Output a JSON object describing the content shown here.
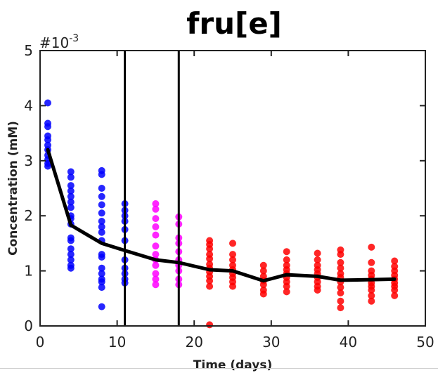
{
  "chart_data": {
    "type": "scatter",
    "title": "fru[e]",
    "xlabel": "Time (days)",
    "ylabel": "Concentration (mM)",
    "xlim": [
      0,
      50
    ],
    "ylim": [
      0,
      5
    ],
    "x_ticks": [
      "0",
      "10",
      "20",
      "30",
      "40",
      "50"
    ],
    "y_ticks": [
      "0",
      "1",
      "2",
      "3",
      "4",
      "5"
    ],
    "y_multiplier_base": "#10",
    "y_multiplier_exp": "-3",
    "vertical_lines_x": [
      11,
      18
    ],
    "mean_line": {
      "color": "#000000",
      "x": [
        1,
        4,
        8,
        11,
        15,
        18,
        22,
        25,
        29,
        32,
        36,
        39,
        43,
        46
      ],
      "y": [
        3.2,
        1.83,
        1.5,
        1.37,
        1.2,
        1.15,
        1.02,
        1.0,
        0.82,
        0.93,
        0.9,
        0.83,
        0.84,
        0.85
      ]
    },
    "series": [
      {
        "color": "#0000ff",
        "points": [
          [
            1,
            4.05
          ],
          [
            1,
            3.68
          ],
          [
            1,
            3.62
          ],
          [
            1,
            3.45
          ],
          [
            1,
            3.38
          ],
          [
            1,
            3.28
          ],
          [
            1,
            3.2
          ],
          [
            1,
            3.1
          ],
          [
            1,
            3.02
          ],
          [
            1,
            2.95
          ],
          [
            1,
            2.9
          ],
          [
            4,
            2.8
          ],
          [
            4,
            2.7
          ],
          [
            4,
            2.55
          ],
          [
            4,
            2.45
          ],
          [
            4,
            2.35
          ],
          [
            4,
            2.25
          ],
          [
            4,
            2.15
          ],
          [
            4,
            2.0
          ],
          [
            4,
            1.95
          ],
          [
            4,
            1.85
          ],
          [
            4,
            1.6
          ],
          [
            4,
            1.55
          ],
          [
            4,
            1.4
          ],
          [
            4,
            1.3
          ],
          [
            4,
            1.2
          ],
          [
            4,
            1.1
          ],
          [
            4,
            1.05
          ],
          [
            8,
            2.82
          ],
          [
            8,
            2.75
          ],
          [
            8,
            2.5
          ],
          [
            8,
            2.35
          ],
          [
            8,
            2.2
          ],
          [
            8,
            2.05
          ],
          [
            8,
            1.9
          ],
          [
            8,
            1.8
          ],
          [
            8,
            1.7
          ],
          [
            8,
            1.55
          ],
          [
            8,
            1.3
          ],
          [
            8,
            1.25
          ],
          [
            8,
            1.05
          ],
          [
            8,
            0.95
          ],
          [
            8,
            0.85
          ],
          [
            8,
            0.8
          ],
          [
            8,
            0.7
          ],
          [
            8,
            0.35
          ],
          [
            11,
            2.22
          ],
          [
            11,
            2.1
          ],
          [
            11,
            2.0
          ],
          [
            11,
            1.9
          ],
          [
            11,
            1.75
          ],
          [
            11,
            1.55
          ],
          [
            11,
            1.2
          ],
          [
            11,
            1.05
          ],
          [
            11,
            0.95
          ],
          [
            11,
            0.85
          ],
          [
            11,
            0.78
          ]
        ]
      },
      {
        "color": "#ff00ff",
        "points": [
          [
            15,
            2.22
          ],
          [
            15,
            2.12
          ],
          [
            15,
            1.95
          ],
          [
            15,
            1.8
          ],
          [
            15,
            1.65
          ],
          [
            15,
            1.45
          ],
          [
            15,
            1.3
          ],
          [
            15,
            1.2
          ],
          [
            15,
            1.1
          ],
          [
            15,
            0.95
          ],
          [
            15,
            0.85
          ],
          [
            15,
            0.75
          ],
          [
            18,
            1.98
          ],
          [
            18,
            1.85
          ],
          [
            18,
            1.6
          ],
          [
            18,
            1.5
          ],
          [
            18,
            1.35
          ],
          [
            18,
            1.2
          ],
          [
            18,
            1.1
          ],
          [
            18,
            1.0
          ],
          [
            18,
            0.85
          ],
          [
            18,
            0.75
          ]
        ]
      },
      {
        "color": "#ff0000",
        "points": [
          [
            22,
            1.55
          ],
          [
            22,
            1.48
          ],
          [
            22,
            1.4
          ],
          [
            22,
            1.3
          ],
          [
            22,
            1.22
          ],
          [
            22,
            1.12
          ],
          [
            22,
            1.05
          ],
          [
            22,
            0.98
          ],
          [
            22,
            0.9
          ],
          [
            22,
            0.82
          ],
          [
            22,
            0.72
          ],
          [
            22,
            0.02
          ],
          [
            25,
            1.5
          ],
          [
            25,
            1.3
          ],
          [
            25,
            1.2
          ],
          [
            25,
            1.1
          ],
          [
            25,
            1.02
          ],
          [
            25,
            0.95
          ],
          [
            25,
            0.88
          ],
          [
            25,
            0.8
          ],
          [
            25,
            0.72
          ],
          [
            29,
            1.1
          ],
          [
            29,
            1.0
          ],
          [
            29,
            0.9
          ],
          [
            29,
            0.82
          ],
          [
            29,
            0.75
          ],
          [
            29,
            0.65
          ],
          [
            29,
            0.58
          ],
          [
            32,
            1.35
          ],
          [
            32,
            1.2
          ],
          [
            32,
            1.1
          ],
          [
            32,
            1.02
          ],
          [
            32,
            0.95
          ],
          [
            32,
            0.88
          ],
          [
            32,
            0.8
          ],
          [
            32,
            0.72
          ],
          [
            32,
            0.62
          ],
          [
            36,
            1.32
          ],
          [
            36,
            1.2
          ],
          [
            36,
            1.1
          ],
          [
            36,
            1.02
          ],
          [
            36,
            0.95
          ],
          [
            36,
            0.88
          ],
          [
            36,
            0.8
          ],
          [
            36,
            0.72
          ],
          [
            36,
            0.65
          ],
          [
            39,
            1.38
          ],
          [
            39,
            1.3
          ],
          [
            39,
            1.15
          ],
          [
            39,
            1.05
          ],
          [
            39,
            0.95
          ],
          [
            39,
            0.88
          ],
          [
            39,
            0.8
          ],
          [
            39,
            0.7
          ],
          [
            39,
            0.6
          ],
          [
            39,
            0.45
          ],
          [
            39,
            0.33
          ],
          [
            43,
            1.43
          ],
          [
            43,
            1.15
          ],
          [
            43,
            1.0
          ],
          [
            43,
            0.92
          ],
          [
            43,
            0.85
          ],
          [
            43,
            0.78
          ],
          [
            43,
            0.72
          ],
          [
            43,
            0.65
          ],
          [
            43,
            0.55
          ],
          [
            43,
            0.45
          ],
          [
            46,
            1.18
          ],
          [
            46,
            1.08
          ],
          [
            46,
            1.0
          ],
          [
            46,
            0.92
          ],
          [
            46,
            0.85
          ],
          [
            46,
            0.78
          ],
          [
            46,
            0.72
          ],
          [
            46,
            0.65
          ],
          [
            46,
            0.55
          ]
        ]
      }
    ]
  }
}
